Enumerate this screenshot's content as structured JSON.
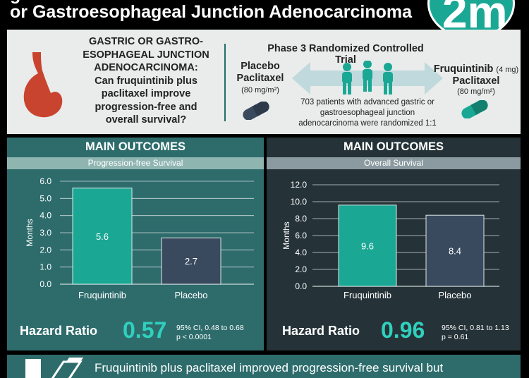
{
  "header": {
    "title": "or Gastroesophageal Junction Adenocarcinoma",
    "logo": "2m"
  },
  "intro": {
    "question": "GASTRIC OR GASTRO-\nESOPHAGEAL JUNCTION\nADENOCARCINOMA:\nCan fruquintinib plus\npaclitaxel improve\nprogression-free and\noverall survival?",
    "trial_title": "Phase 3 Randomized Controlled Trial",
    "placebo_name": "Placebo\nPaclitaxel",
    "placebo_dose": "(80 mg/m²)",
    "fruq_name": "Fruquintinib",
    "fruq_dose": "(4 mg)",
    "fruq_paclitaxel": "Paclitaxel",
    "fruq_paclitaxel_dose": "(80 mg/m²)",
    "description": "703 patients with advanced gastric or\ngastroesophageal junction\nadenocarcinoma were randomized 1:1",
    "icons": [
      "stomach-icon",
      "pill-icon",
      "people-icon",
      "double-arrow-icon"
    ]
  },
  "pfs": {
    "title": "MAIN OUTCOMES",
    "subtitle": "Progression-free Survival",
    "hr_label": "Hazard Ratio",
    "hr_value": "0.57",
    "hr_ci": "95% CI, 0.48 to 0.68\np < 0.0001"
  },
  "os": {
    "title": "MAIN OUTCOMES",
    "subtitle": "Overall Survival",
    "hr_label": "Hazard Ratio",
    "hr_value": "0.96",
    "hr_ci": "95% CI, 0.81 to 1.13\np = 0.61"
  },
  "footer": {
    "text": "Fruquintinib plus paclitaxel improved progression-free survival but"
  },
  "colors": {
    "teal_bar": "#1aa895",
    "placebo_bar": "#3a4a5e",
    "hr_value": "#2fd0be",
    "left_panel": "#2e6c6c",
    "right_panel": "#253338"
  },
  "chart_data": [
    {
      "type": "bar",
      "categories": [
        "Fruquintinib",
        "Placebo"
      ],
      "values": [
        5.6,
        2.7
      ],
      "value_labels": [
        "5.6",
        "2.7"
      ],
      "ylabel": "Months",
      "ylim": [
        0,
        6
      ],
      "yticks": [
        "0.0",
        "1.0",
        "2.0",
        "3.0",
        "4.0",
        "5.0",
        "6.0"
      ],
      "grid": true
    },
    {
      "type": "bar",
      "categories": [
        "Fruquintinib",
        "Placebo"
      ],
      "values": [
        9.6,
        8.4
      ],
      "value_labels": [
        "9.6",
        "8.4"
      ],
      "ylabel": "Months",
      "ylim": [
        0,
        12
      ],
      "yticks": [
        "0.0",
        "2.0",
        "4.0",
        "6.0",
        "8.0",
        "10.0",
        "12.0"
      ],
      "grid": true
    }
  ]
}
